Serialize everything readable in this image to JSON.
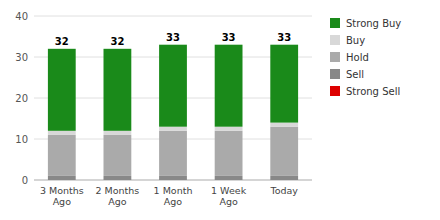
{
  "chart_data": {
    "type": "bar",
    "stacked": true,
    "grid": true,
    "legend": "right",
    "categories": [
      "3 Months\nAgo",
      "2 Months\nAgo",
      "1 Month\nAgo",
      "1 Week\nAgo",
      "Today"
    ],
    "series": [
      {
        "name": "Sell",
        "color": "#888888",
        "values": [
          1,
          1,
          1,
          1,
          1
        ]
      },
      {
        "name": "Hold",
        "color": "#aaaaaa",
        "values": [
          10,
          10,
          11,
          11,
          12
        ]
      },
      {
        "name": "Buy",
        "color": "#d8d8d8",
        "values": [
          1,
          1,
          1,
          1,
          1
        ]
      },
      {
        "name": "Strong Buy",
        "color": "#1a8a1a",
        "values": [
          20,
          20,
          20,
          20,
          19
        ]
      },
      {
        "name": "Strong Sell",
        "color": "#dd0000",
        "values": [
          0,
          0,
          0,
          0,
          0
        ]
      }
    ],
    "totals": [
      32,
      32,
      33,
      33,
      33
    ],
    "ylim": [
      0,
      40
    ],
    "yticks": [
      0,
      10,
      20,
      30,
      40
    ]
  }
}
